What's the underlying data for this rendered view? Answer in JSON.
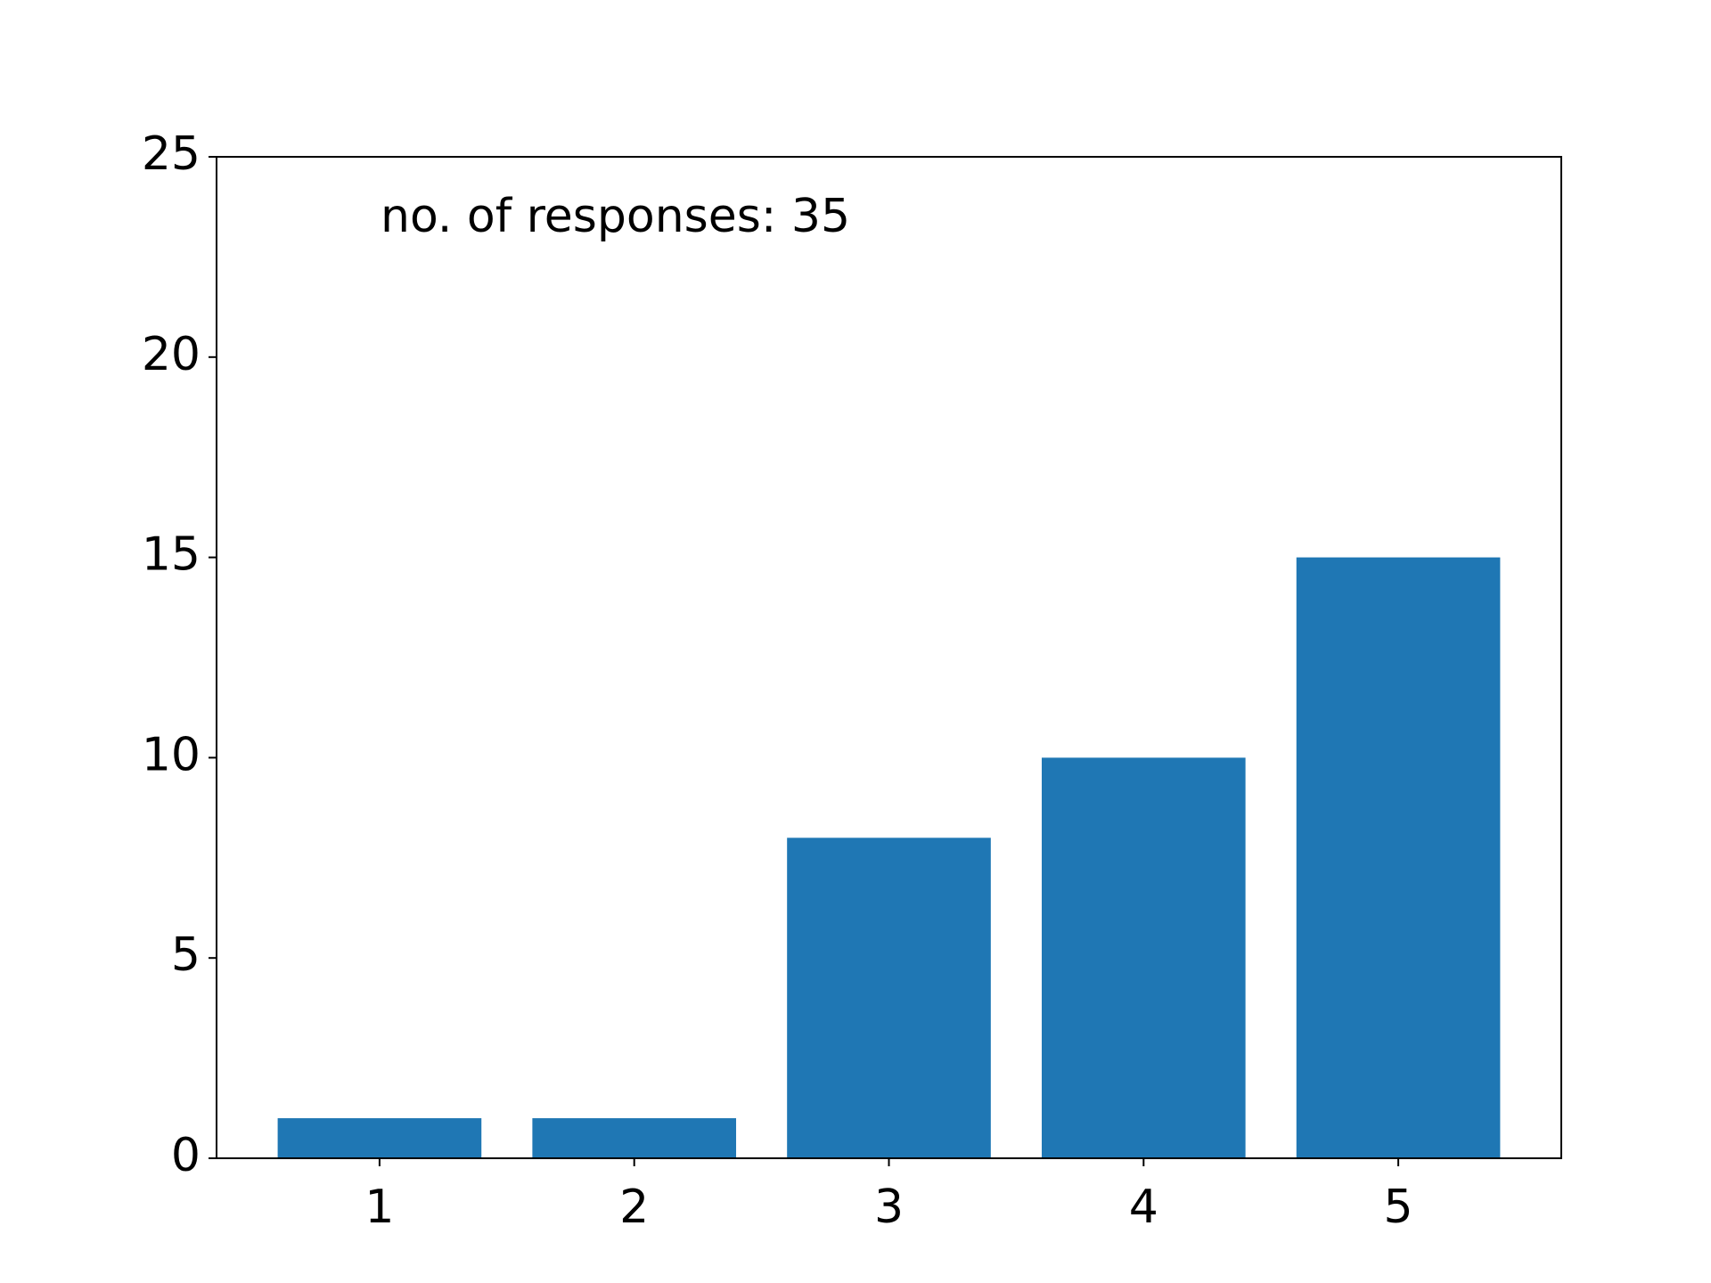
{
  "chart_data": {
    "type": "bar",
    "annotation": "no. of responses: 35",
    "x": [
      1,
      2,
      3,
      4,
      5
    ],
    "values": [
      1,
      1,
      8,
      10,
      15
    ],
    "color": "#1f77b4",
    "xlim": [
      0.36,
      5.64
    ],
    "xticks": [
      1,
      2,
      3,
      4,
      5
    ],
    "ylim": [
      0,
      25
    ],
    "yticks": [
      0,
      5,
      10,
      15,
      20,
      25
    ],
    "grid": false
  }
}
